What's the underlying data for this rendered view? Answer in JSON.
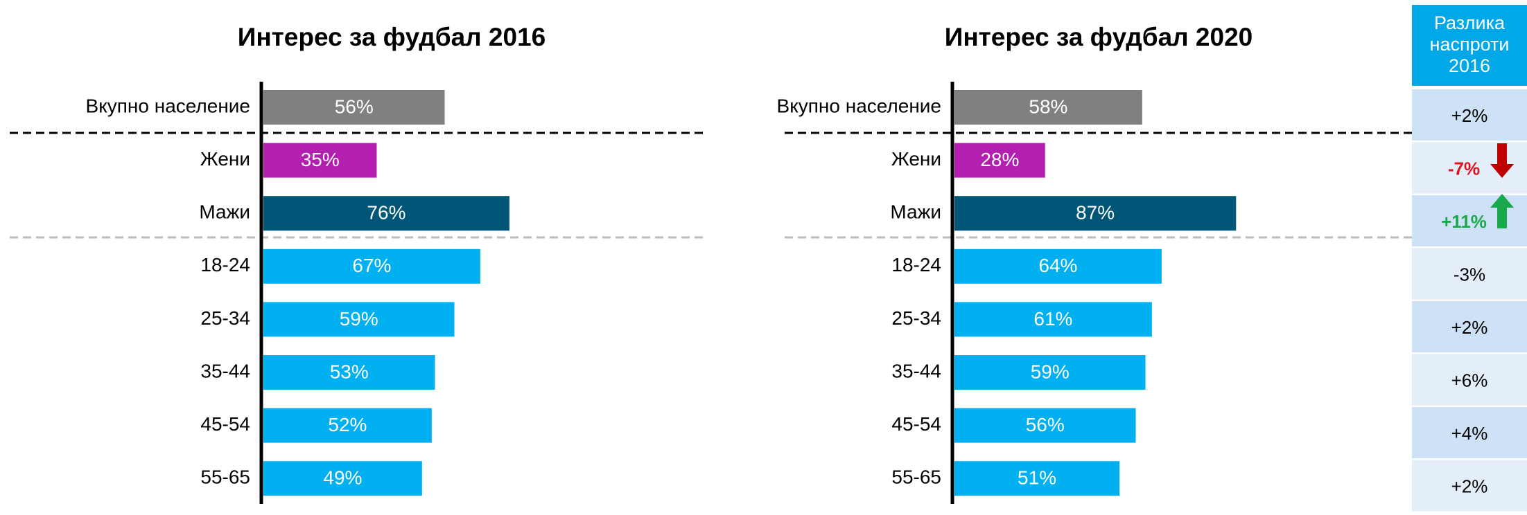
{
  "chart_data": [
    {
      "type": "hbar",
      "title": "Интерес за фудбал 2016",
      "categories": [
        "Вкупно население",
        "Жени",
        "Мажи",
        "18-24",
        "25-34",
        "35-44",
        "45-54",
        "55-65"
      ],
      "values": [
        56,
        35,
        76,
        67,
        59,
        53,
        52,
        49
      ],
      "value_labels": [
        "56%",
        "35%",
        "76%",
        "67%",
        "59%",
        "53%",
        "52%",
        "49%"
      ],
      "colors": [
        "#808080",
        "#b31fae",
        "#005677",
        "#00b0f0",
        "#00b0f0",
        "#00b0f0",
        "#00b0f0",
        "#00b0f0"
      ]
    },
    {
      "type": "hbar",
      "title": "Интерес за фудбал 2020",
      "categories": [
        "Вкупно население",
        "Жени",
        "Мажи",
        "18-24",
        "25-34",
        "35-44",
        "45-54",
        "55-65"
      ],
      "values": [
        58,
        28,
        87,
        64,
        61,
        59,
        56,
        51
      ],
      "value_labels": [
        "58%",
        "28%",
        "87%",
        "64%",
        "61%",
        "59%",
        "56%",
        "51%"
      ],
      "colors": [
        "#808080",
        "#b31fae",
        "#005677",
        "#00b0f0",
        "#00b0f0",
        "#00b0f0",
        "#00b0f0",
        "#00b0f0"
      ]
    }
  ],
  "table": {
    "header": [
      "Разлика",
      "наспроти",
      "2016"
    ],
    "rows": [
      "+2%",
      "-7%",
      "+11%",
      "-3%",
      "+2%",
      "+6%",
      "+4%",
      "+2%"
    ]
  }
}
